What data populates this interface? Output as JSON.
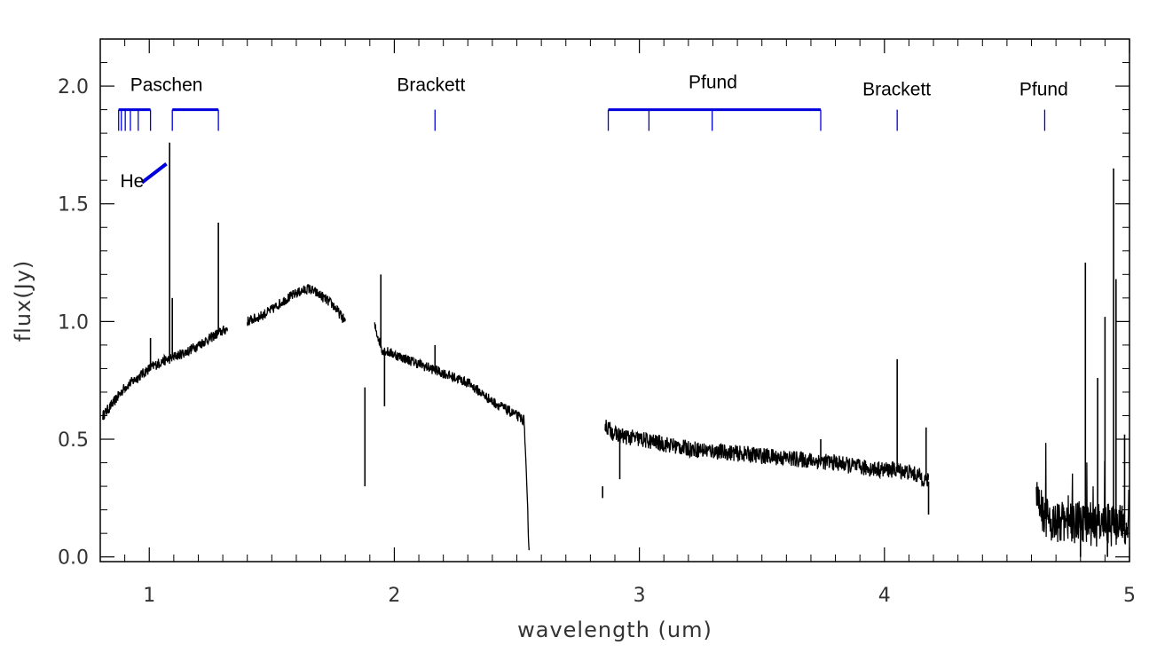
{
  "chart_data": {
    "type": "line",
    "xlabel": "wavelength (um)",
    "ylabel": "flux(Jy)",
    "xlim": [
      0.8,
      5.0
    ],
    "ylim": [
      -0.02,
      2.2
    ],
    "x_ticks": [
      1,
      2,
      3,
      4,
      5
    ],
    "x_tick_labels": [
      "1",
      "2",
      "3",
      "4",
      "5"
    ],
    "y_ticks": [
      0.0,
      0.5,
      1.0,
      1.5,
      2.0
    ],
    "y_tick_labels": [
      "0.0",
      "0.5",
      "1.0",
      "1.5",
      "2.0"
    ],
    "grid": false,
    "series_color": "#000000",
    "marker_color": "#0000dd",
    "segments": [
      {
        "x": [
          0.81,
          0.85,
          0.9,
          0.95,
          1.0,
          1.05,
          1.08,
          1.1,
          1.15,
          1.2,
          1.25,
          1.28,
          1.3,
          1.32
        ],
        "y": [
          0.6,
          0.65,
          0.72,
          0.76,
          0.8,
          0.83,
          0.84,
          0.85,
          0.87,
          0.9,
          0.93,
          0.95,
          0.96,
          0.97
        ]
      },
      {
        "x": [
          1.4,
          1.45,
          1.5,
          1.55,
          1.6,
          1.65,
          1.7,
          1.75,
          1.8
        ],
        "y": [
          1.0,
          1.02,
          1.05,
          1.09,
          1.12,
          1.14,
          1.11,
          1.07,
          1.0
        ]
      },
      {
        "x": [
          1.92,
          1.95,
          2.0,
          2.05,
          2.1,
          2.15,
          2.2,
          2.25,
          2.3,
          2.35,
          2.4,
          2.45,
          2.5,
          2.53,
          2.54,
          2.55
        ],
        "y": [
          0.98,
          0.88,
          0.86,
          0.84,
          0.82,
          0.8,
          0.78,
          0.76,
          0.74,
          0.7,
          0.66,
          0.63,
          0.6,
          0.58,
          0.3,
          0.03
        ]
      },
      {
        "x": [
          2.86,
          2.9,
          3.0,
          3.1,
          3.2,
          3.3,
          3.4,
          3.5,
          3.6,
          3.7,
          3.8,
          3.9,
          4.0,
          4.05,
          4.1,
          4.15,
          4.18
        ],
        "y": [
          0.56,
          0.52,
          0.5,
          0.48,
          0.46,
          0.45,
          0.44,
          0.43,
          0.42,
          0.41,
          0.4,
          0.38,
          0.37,
          0.37,
          0.36,
          0.34,
          0.32
        ]
      },
      {
        "x": [
          4.62,
          4.65,
          4.7,
          4.75,
          4.8,
          4.85,
          4.9,
          4.95,
          5.0
        ],
        "y": [
          0.3,
          0.18,
          0.14,
          0.15,
          0.14,
          0.13,
          0.14,
          0.13,
          0.14
        ]
      }
    ],
    "emission_spikes": [
      {
        "x": 1.083,
        "y_top": 1.76
      },
      {
        "x": 1.094,
        "y_top": 1.1
      },
      {
        "x": 1.282,
        "y_top": 1.42
      },
      {
        "x": 1.005,
        "y_top": 0.93
      },
      {
        "x": 1.945,
        "y_top": 1.2
      },
      {
        "x": 2.166,
        "y_top": 0.9
      },
      {
        "x": 2.85,
        "y_top": 0.25
      },
      {
        "x": 3.74,
        "y_top": 0.5
      },
      {
        "x": 4.052,
        "y_top": 0.84
      },
      {
        "x": 4.17,
        "y_top": 0.55
      },
      {
        "x": 4.82,
        "y_top": 1.25
      },
      {
        "x": 4.87,
        "y_top": 0.76
      },
      {
        "x": 4.9,
        "y_top": 1.02
      },
      {
        "x": 4.935,
        "y_top": 1.65
      },
      {
        "x": 4.945,
        "y_top": 1.18
      },
      {
        "x": 4.98,
        "y_top": 0.52
      }
    ],
    "absorption_dips": [
      {
        "x": 1.88,
        "y_bottom": 0.72
      },
      {
        "x": 1.96,
        "y_bottom": 0.64
      },
      {
        "x": 2.92,
        "y_bottom": 0.33
      },
      {
        "x": 4.18,
        "y_bottom": 0.18
      },
      {
        "x": 4.8,
        "y_bottom": 0.0
      },
      {
        "x": 4.91,
        "y_bottom": 0.0
      }
    ],
    "line_series": [
      {
        "name": "Paschen",
        "x": [
          0.875,
          0.886,
          0.902,
          0.923,
          0.955,
          1.005,
          1.094,
          1.282
        ],
        "label_x": 1.07,
        "label_y": 1.98,
        "brackets": [
          [
            0.875,
            1.005
          ],
          [
            1.094,
            1.282
          ]
        ]
      },
      {
        "name": "Brackett",
        "x": [
          2.166
        ],
        "label_x": 2.15,
        "label_y": 1.98,
        "brackets": []
      },
      {
        "name": "Pfund",
        "x": [
          2.873,
          3.039,
          3.297,
          3.74
        ],
        "label_x": 3.3,
        "label_y": 1.99,
        "brackets": [
          [
            2.873,
            3.74
          ]
        ]
      },
      {
        "name": "Brackett",
        "x": [
          4.052
        ],
        "label_x": 4.05,
        "label_y": 1.96,
        "brackets": []
      },
      {
        "name": "Pfund",
        "x": [
          4.654
        ],
        "label_x": 4.65,
        "label_y": 1.96,
        "brackets": []
      }
    ],
    "He_label": {
      "text": "He",
      "x": 0.93,
      "y": 1.57,
      "line_from": [
        0.97,
        1.59
      ],
      "line_to": [
        1.07,
        1.67
      ]
    }
  }
}
